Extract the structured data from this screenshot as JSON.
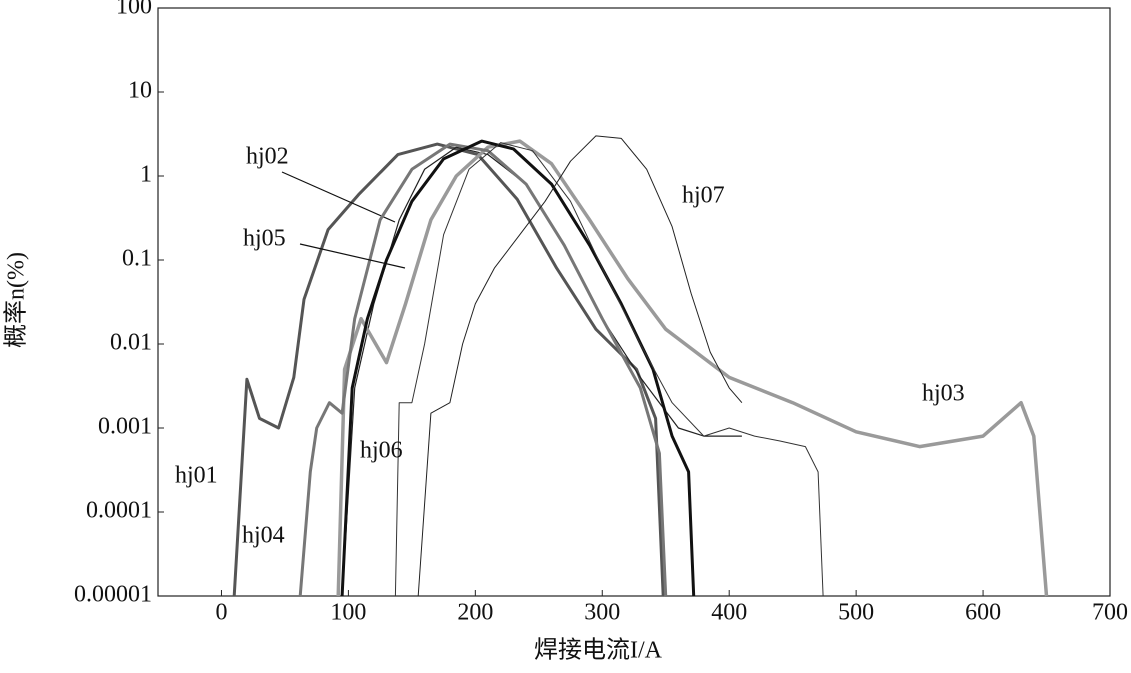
{
  "chart_data": {
    "type": "line",
    "xlabel": "焊接电流I/A",
    "ylabel": "概率n(%)",
    "xlim": [
      -50,
      700
    ],
    "xticks": [
      0,
      100,
      200,
      300,
      400,
      500,
      600,
      700
    ],
    "ylim": [
      1e-05,
      100
    ],
    "yticks": [
      100,
      10,
      1,
      0.1,
      0.01,
      0.001,
      0.0001,
      1e-05
    ],
    "ylog": true,
    "grid": false,
    "series": [
      {
        "name": "hj01",
        "color": "#555555",
        "x": [
          10,
          20,
          30,
          45,
          57,
          65,
          84,
          108,
          139,
          170,
          202,
          233,
          264,
          295,
          327,
          342,
          348
        ],
        "values": [
          1e-05,
          0.0038,
          0.0013,
          0.001,
          0.004,
          0.034,
          0.23,
          0.6,
          1.8,
          2.4,
          1.8,
          0.53,
          0.08,
          0.015,
          0.005,
          0.0013,
          1e-05
        ]
      },
      {
        "name": "hj02",
        "color": "#222222",
        "x": [
          95,
          105,
          120,
          140,
          160,
          185,
          210,
          240,
          270,
          300,
          330,
          360,
          380,
          410
        ],
        "values": [
          1e-05,
          0.003,
          0.03,
          0.3,
          1.2,
          2.2,
          1.8,
          0.8,
          0.15,
          0.02,
          0.004,
          0.001,
          0.0008,
          0.0008
        ]
      },
      {
        "name": "hj03",
        "color": "#9a9a9a",
        "x": [
          92,
          97,
          110,
          130,
          145,
          165,
          185,
          210,
          235,
          260,
          290,
          320,
          350,
          400,
          450,
          500,
          550,
          600,
          630,
          640,
          650
        ],
        "values": [
          1e-05,
          0.005,
          0.02,
          0.006,
          0.03,
          0.3,
          1,
          2.2,
          2.6,
          1.4,
          0.3,
          0.06,
          0.015,
          0.004,
          0.002,
          0.0009,
          0.0006,
          0.0008,
          0.002,
          0.0008,
          1e-05
        ]
      },
      {
        "name": "hj04",
        "color": "#777777",
        "x": [
          62,
          70,
          75,
          85,
          95,
          105,
          125,
          150,
          180,
          210,
          240,
          270,
          300,
          330,
          345,
          350
        ],
        "values": [
          1e-05,
          0.0003,
          0.001,
          0.002,
          0.0015,
          0.02,
          0.3,
          1.2,
          2.4,
          2,
          0.8,
          0.15,
          0.02,
          0.003,
          0.0005,
          1e-05
        ]
      },
      {
        "name": "hj05",
        "color": "#111111",
        "x": [
          95,
          103,
          115,
          130,
          150,
          175,
          205,
          230,
          260,
          290,
          315,
          340,
          355,
          368,
          372
        ],
        "values": [
          1e-05,
          0.003,
          0.02,
          0.1,
          0.5,
          1.6,
          2.6,
          2.1,
          0.8,
          0.15,
          0.03,
          0.005,
          0.0008,
          0.0003,
          1e-05
        ]
      },
      {
        "name": "hj06",
        "color": "#333333",
        "x": [
          137,
          140,
          150,
          160,
          175,
          195,
          220,
          245,
          275,
          300,
          330,
          355,
          380,
          400,
          420,
          440,
          460,
          470,
          474
        ],
        "values": [
          1e-05,
          0.002,
          0.002,
          0.01,
          0.2,
          1.2,
          2.5,
          2,
          0.5,
          0.08,
          0.01,
          0.002,
          0.0008,
          0.001,
          0.0008,
          0.0007,
          0.0006,
          0.0003,
          1e-05
        ]
      },
      {
        "name": "hj07",
        "color": "#222222",
        "x": [
          155,
          165,
          180,
          190,
          200,
          215,
          235,
          255,
          275,
          295,
          315,
          335,
          355,
          370,
          385,
          400,
          410
        ],
        "values": [
          1e-05,
          0.0015,
          0.002,
          0.01,
          0.03,
          0.08,
          0.2,
          0.5,
          1.5,
          3,
          2.8,
          1.2,
          0.25,
          0.04,
          0.008,
          0.003,
          0.002
        ]
      }
    ]
  }
}
